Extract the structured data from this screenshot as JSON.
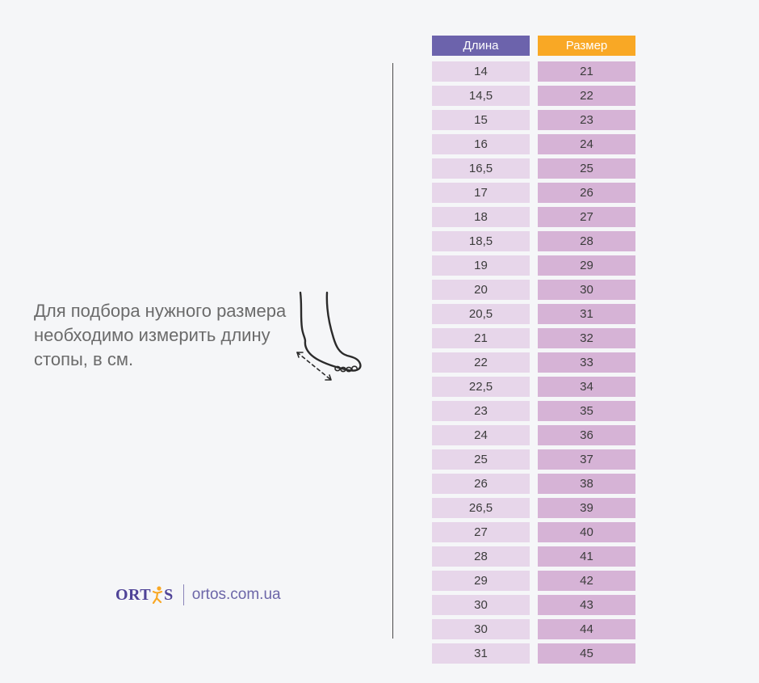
{
  "instruction_text": "Для подбора нужного размера необходимо измерить длину стопы, в см.",
  "brand": {
    "logo_text": "ORTOS",
    "website": "ortos.com.ua"
  },
  "table": {
    "header": {
      "length": "Длина",
      "size": "Размер"
    },
    "rows": [
      {
        "length": "14",
        "size": "21"
      },
      {
        "length": "14,5",
        "size": "22"
      },
      {
        "length": "15",
        "size": "23"
      },
      {
        "length": "16",
        "size": "24"
      },
      {
        "length": "16,5",
        "size": "25"
      },
      {
        "length": "17",
        "size": "26"
      },
      {
        "length": "18",
        "size": "27"
      },
      {
        "length": "18,5",
        "size": "28"
      },
      {
        "length": "19",
        "size": "29"
      },
      {
        "length": "20",
        "size": "30"
      },
      {
        "length": "20,5",
        "size": "31"
      },
      {
        "length": "21",
        "size": "32"
      },
      {
        "length": "22",
        "size": "33"
      },
      {
        "length": "22,5",
        "size": "34"
      },
      {
        "length": "23",
        "size": "35"
      },
      {
        "length": "24",
        "size": "36"
      },
      {
        "length": "25",
        "size": "37"
      },
      {
        "length": "26",
        "size": "38"
      },
      {
        "length": "26,5",
        "size": "39"
      },
      {
        "length": "27",
        "size": "40"
      },
      {
        "length": "28",
        "size": "41"
      },
      {
        "length": "29",
        "size": "42"
      },
      {
        "length": "30",
        "size": "43"
      },
      {
        "length": "30",
        "size": "44"
      },
      {
        "length": "31",
        "size": "45"
      }
    ]
  },
  "colors": {
    "background": "#f5f6f8",
    "header_length": "#6c63ac",
    "header_size": "#f9a825",
    "cell_length": "#e7d6ea",
    "cell_size": "#d6b3d6",
    "brand": "#4f4397"
  },
  "icons": {
    "illustration": "foot-measure-icon",
    "logo_mark": "figure-logo-icon"
  }
}
